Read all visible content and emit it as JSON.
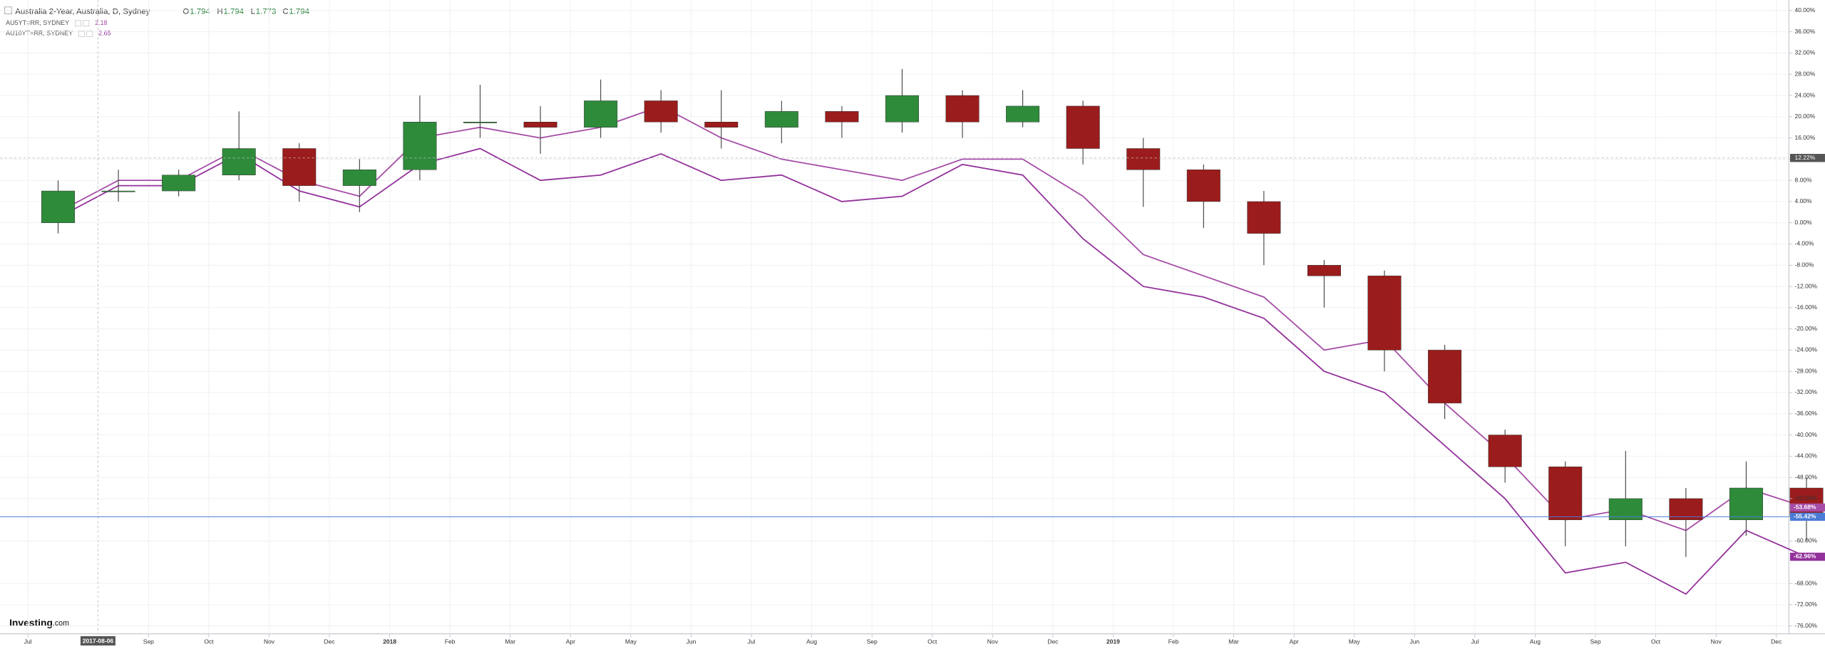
{
  "chart_data": {
    "type": "candlestick",
    "title": "Australia 2-Year, Australia, D, Sydney",
    "ohlc_legend": [
      {
        "label": "O",
        "value": 1.794
      },
      {
        "label": "H",
        "value": 1.794
      },
      {
        "label": "L",
        "value": 1.773
      },
      {
        "label": "C",
        "value": 1.794
      }
    ],
    "x": [
      "2017-07",
      "2017-08",
      "2017-09",
      "2017-10",
      "2017-11",
      "2017-12",
      "2018-01",
      "2018-02",
      "2018-03",
      "2018-04",
      "2018-05",
      "2018-06",
      "2018-07",
      "2018-08",
      "2018-09",
      "2018-10",
      "2018-11",
      "2018-12",
      "2019-01",
      "2019-02",
      "2019-03",
      "2019-04",
      "2019-05",
      "2019-06",
      "2019-07",
      "2019-08",
      "2019-09",
      "2019-10",
      "2019-11",
      "2019-12"
    ],
    "candles": {
      "up_color": "#2e8b3a",
      "down_color": "#9b1c1c",
      "label_color": "#4a7bd6",
      "open": [
        0,
        6,
        6,
        9,
        14,
        7,
        10,
        19,
        19,
        18,
        23,
        19,
        18,
        21,
        19,
        24,
        19,
        22,
        14,
        10,
        4,
        -8,
        -10,
        -24,
        -40,
        -46,
        -56,
        -52,
        -56,
        -50
      ],
      "high": [
        8,
        10,
        10,
        21,
        15,
        12,
        24,
        26,
        22,
        27,
        25,
        25,
        23,
        22,
        29,
        25,
        25,
        23,
        16,
        11,
        6,
        -7,
        -9,
        -23,
        -39,
        -45,
        -43,
        -50,
        -45,
        -48
      ],
      "low": [
        -2,
        4,
        5,
        8,
        4,
        2,
        8,
        16,
        13,
        16,
        17,
        14,
        15,
        16,
        17,
        16,
        18,
        11,
        3,
        -1,
        -8,
        -16,
        -28,
        -37,
        -49,
        -61,
        -61,
        -63,
        -59,
        -60
      ],
      "close": [
        6,
        6,
        9,
        14,
        7,
        10,
        19,
        19,
        18,
        23,
        19,
        18,
        21,
        19,
        24,
        19,
        22,
        14,
        10,
        4,
        -2,
        -10,
        -24,
        -34,
        -46,
        -56,
        -52,
        -56,
        -50,
        -55.42
      ],
      "close_labels": [
        null,
        null,
        null,
        null,
        null,
        null,
        null,
        null,
        null,
        null,
        null,
        null,
        null,
        null,
        null,
        null,
        null,
        null,
        null,
        null,
        null,
        null,
        null,
        null,
        null,
        null,
        null,
        null,
        null,
        "-55.42%"
      ]
    },
    "series": [
      {
        "name": "AU5YT=RR, SYDNEY",
        "legend_value": 2.18,
        "color": "#a64ca6",
        "values": [
          2,
          8,
          8,
          14,
          8,
          5,
          16,
          18,
          16,
          18,
          22,
          16,
          12,
          10,
          8,
          12,
          12,
          5,
          -6,
          -10,
          -14,
          -24,
          -22,
          -34,
          -44,
          -56,
          -54,
          -58,
          -50,
          -53.68
        ],
        "value_labels": [
          null,
          null,
          null,
          null,
          null,
          null,
          null,
          null,
          null,
          null,
          null,
          null,
          null,
          null,
          null,
          null,
          null,
          null,
          null,
          null,
          null,
          null,
          null,
          null,
          null,
          null,
          null,
          null,
          null,
          "-53.68%"
        ]
      },
      {
        "name": "AU10YT=RR, SYDNEY",
        "legend_value": 2.65,
        "color": "#93319b",
        "values": [
          1,
          7,
          7,
          13,
          6,
          3,
          11,
          14,
          8,
          9,
          13,
          8,
          9,
          4,
          5,
          11,
          9,
          -3,
          -12,
          -14,
          -18,
          -28,
          -32,
          -42,
          -52,
          -66,
          -64,
          -70,
          -58,
          -62.96
        ],
        "value_labels": [
          null,
          null,
          null,
          null,
          null,
          null,
          null,
          null,
          null,
          null,
          null,
          null,
          null,
          null,
          null,
          null,
          null,
          null,
          null,
          null,
          null,
          null,
          null,
          null,
          null,
          null,
          null,
          null,
          null,
          "-62.96%"
        ]
      }
    ],
    "ylim": [
      -77.5,
      42
    ],
    "yticks": [
      {
        "value": 40,
        "label": "40.00%"
      },
      {
        "value": 36,
        "label": "36.00%"
      },
      {
        "value": 32,
        "label": "32.00%"
      },
      {
        "value": 28,
        "label": "28.00%"
      },
      {
        "value": 24,
        "label": "24.00%"
      },
      {
        "value": 20,
        "label": "20.00%"
      },
      {
        "value": 16,
        "label": "16.00%"
      },
      {
        "value": 12,
        "label": "12.00%"
      },
      {
        "value": 8,
        "label": "8.00%"
      },
      {
        "value": 4,
        "label": "4.00%"
      },
      {
        "value": 0,
        "label": "0.00%"
      },
      {
        "value": -4,
        "label": "-4.00%"
      },
      {
        "value": -8,
        "label": "-8.00%"
      },
      {
        "value": -12,
        "label": "-12.00%"
      },
      {
        "value": -16,
        "label": "-16.00%"
      },
      {
        "value": -20,
        "label": "-20.00%"
      },
      {
        "value": -24,
        "label": "-24.00%"
      },
      {
        "value": -28,
        "label": "-28.00%"
      },
      {
        "value": -32,
        "label": "-32.00%"
      },
      {
        "value": -36,
        "label": "-36.00%"
      },
      {
        "value": -40,
        "label": "-40.00%"
      },
      {
        "value": -44,
        "label": "-44.00%"
      },
      {
        "value": -48,
        "label": "-48.00%"
      },
      {
        "value": -52,
        "label": "-52.00%"
      },
      {
        "value": -60,
        "label": "-60.00%"
      },
      {
        "value": -68,
        "label": "-68.00%"
      },
      {
        "value": -72,
        "label": "-72.00%"
      },
      {
        "value": -76,
        "label": "-76.00%"
      }
    ],
    "xticks": [
      {
        "value": "2017-07",
        "label": "Jul"
      },
      {
        "value": "2017-09",
        "label": "Sep"
      },
      {
        "value": "2017-10",
        "label": "Oct"
      },
      {
        "value": "2017-11",
        "label": "Nov"
      },
      {
        "value": "2017-12",
        "label": "Dec"
      },
      {
        "value": "2018-01",
        "label": "2018"
      },
      {
        "value": "2018-02",
        "label": "Feb"
      },
      {
        "value": "2018-03",
        "label": "Mar"
      },
      {
        "value": "2018-04",
        "label": "Apr"
      },
      {
        "value": "2018-05",
        "label": "May"
      },
      {
        "value": "2018-06",
        "label": "Jun"
      },
      {
        "value": "2018-07",
        "label": "Jul"
      },
      {
        "value": "2018-08",
        "label": "Aug"
      },
      {
        "value": "2018-09",
        "label": "Sep"
      },
      {
        "value": "2018-10",
        "label": "Oct"
      },
      {
        "value": "2018-11",
        "label": "Nov"
      },
      {
        "value": "2018-12",
        "label": "Dec"
      },
      {
        "value": "2019-01",
        "label": "2019"
      },
      {
        "value": "2019-02",
        "label": "Feb"
      },
      {
        "value": "2019-03",
        "label": "Mar"
      },
      {
        "value": "2019-04",
        "label": "Apr"
      },
      {
        "value": "2019-05",
        "label": "May"
      },
      {
        "value": "2019-06",
        "label": "Jun"
      },
      {
        "value": "2019-07",
        "label": "Jul"
      },
      {
        "value": "2019-08",
        "label": "Aug"
      },
      {
        "value": "2019-09",
        "label": "Sep"
      },
      {
        "value": "2019-10",
        "label": "Oct"
      },
      {
        "value": "2019-11",
        "label": "Nov"
      },
      {
        "value": "2019-12",
        "label": "Dec"
      }
    ],
    "grid": true,
    "crosshair": {
      "x": "2017-08-06",
      "y": 12.22,
      "y_label": "12.22%"
    },
    "watermark": [
      "Investing",
      ".com"
    ]
  }
}
